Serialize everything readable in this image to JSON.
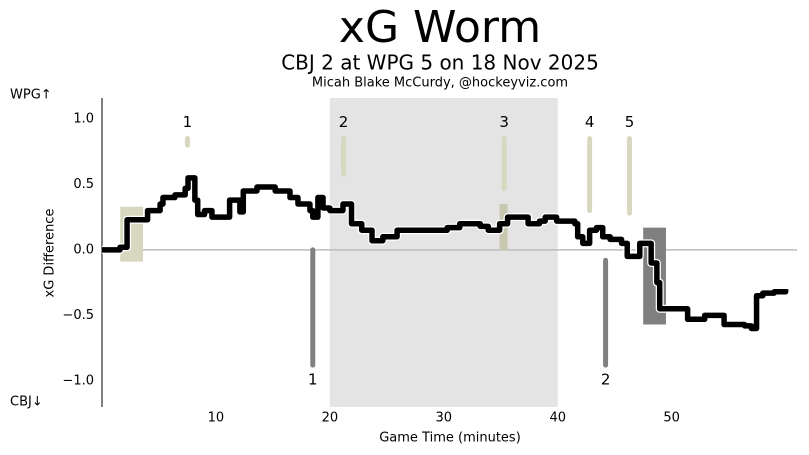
{
  "chart_data": {
    "type": "line",
    "title": "xG Worm",
    "subtitle": "CBJ 2 at WPG 5 on 18 Nov 2025",
    "credit": "Micah Blake McCurdy, @hockeyviz.com",
    "x_label": "Game Time (minutes)",
    "y_label": "xG Difference",
    "top_label": "WPG↑",
    "bottom_label": "CBJ↓",
    "xlim": [
      0,
      61
    ],
    "ylim": [
      -1.2,
      1.16
    ],
    "xticks": [
      10,
      20,
      30,
      40,
      50
    ],
    "yticks": [
      {
        "value": -1,
        "label": "−1.0"
      },
      {
        "value": -0.5,
        "label": "−0.5"
      },
      {
        "value": 0,
        "label": "0.0"
      },
      {
        "value": 0.5,
        "label": "0.5"
      },
      {
        "value": 1,
        "label": "1.0"
      }
    ],
    "color": "#000000",
    "x": [
      0,
      1.58,
      2.2,
      4.0,
      5.1,
      5.35,
      6.4,
      7.3,
      7.55,
      8.15,
      8.4,
      9.0,
      9.65,
      11.2,
      12.1,
      12.4,
      13.6,
      15.2,
      16.5,
      17.2,
      18.25,
      18.5,
      18.95,
      19.4,
      20.0,
      21.15,
      21.9,
      22.8,
      23.7,
      24.65,
      25.9,
      28.8,
      30.3,
      31.4,
      33.2,
      33.9,
      34.9,
      35.6,
      37.4,
      38.4,
      38.9,
      39.9,
      41.5,
      41.75,
      42.2,
      42.8,
      43.4,
      43.95,
      44.6,
      45.6,
      46.1,
      47.2,
      48.2,
      48.7,
      48.95,
      51.4,
      52.9,
      54.6,
      56.4,
      57.0,
      57.45,
      58.0,
      59.0,
      60.0
    ],
    "values": [
      0,
      0.02,
      0.23,
      0.3,
      0.35,
      0.4,
      0.42,
      0.47,
      0.55,
      0.38,
      0.27,
      0.3,
      0.25,
      0.38,
      0.29,
      0.45,
      0.48,
      0.45,
      0.4,
      0.35,
      0.3,
      0.25,
      0.4,
      0.32,
      0.3,
      0.35,
      0.2,
      0.15,
      0.07,
      0.1,
      0.15,
      0.15,
      0.17,
      0.2,
      0.18,
      0.15,
      0.2,
      0.25,
      0.2,
      0.22,
      0.25,
      0.22,
      0.2,
      0.1,
      0.05,
      0.15,
      0.17,
      0.1,
      0.08,
      0.05,
      -0.05,
      0.05,
      -0.1,
      -0.25,
      -0.45,
      -0.53,
      -0.5,
      -0.57,
      -0.58,
      -0.6,
      -0.35,
      -0.33,
      -0.32,
      -0.3
    ],
    "zero_line": true,
    "shaded_region": {
      "x": [
        20,
        40
      ],
      "color": "#e4e4e4"
    },
    "penalties": [
      {
        "x": [
          1.6,
          3.6
        ],
        "y": [
          -0.09,
          0.33
        ],
        "color": "#d8d8c0"
      },
      {
        "x": [
          34.9,
          35.6
        ],
        "y": [
          0,
          0.35
        ],
        "color": "#c8c8b0"
      },
      {
        "x": [
          47.5,
          49.5
        ],
        "y": [
          -0.57,
          0.17
        ],
        "color": "#808080"
      }
    ],
    "goals": [
      {
        "label": "1",
        "x": 7.5,
        "y": [
          0.8,
          0.85
        ],
        "side": "top",
        "color": "#d8d8c0"
      },
      {
        "label": "2",
        "x": 21.2,
        "y": [
          0.58,
          0.85
        ],
        "side": "top",
        "color": "#d8d8c0"
      },
      {
        "label": "3",
        "x": 35.3,
        "y": [
          0.47,
          0.85
        ],
        "side": "top",
        "color": "#d8d8c0"
      },
      {
        "label": "4",
        "x": 42.8,
        "y": [
          0.3,
          0.85
        ],
        "side": "top",
        "color": "#d8d8c0"
      },
      {
        "label": "5",
        "x": 46.3,
        "y": [
          0.28,
          0.85
        ],
        "side": "top",
        "color": "#d8d8c0"
      },
      {
        "label": "1",
        "x": 18.5,
        "y": [
          -0.88,
          0
        ],
        "side": "bottom",
        "color": "#808080"
      },
      {
        "label": "2",
        "x": 44.2,
        "y": [
          -0.88,
          -0.08
        ],
        "side": "bottom",
        "color": "#808080"
      }
    ]
  }
}
